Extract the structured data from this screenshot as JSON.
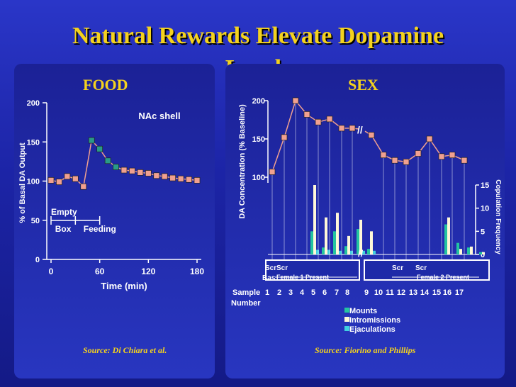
{
  "slide": {
    "title": "Natural Rewards Elevate Dopamine Levels",
    "title_line1": "Natural Rewards Elevate Dopamine",
    "title_line2": "Levels",
    "colors": {
      "title": "#f4d21e",
      "text": "#ffffff",
      "marker_pink": "#f0a090",
      "marker_teal": "#2a9a88",
      "series_line": "#f0a090",
      "mounts": "#24c4a0",
      "intromissions": "#fff8d8",
      "ejaculations": "#40d0e0"
    }
  },
  "chart_data": [
    {
      "type": "line",
      "subtitle": "FOOD",
      "annotation": "NAc shell",
      "xlabel": "Time (min)",
      "ylabel": "% of Basal DA Output",
      "xticks": [
        "0",
        "60",
        "120",
        "180"
      ],
      "yticks": [
        "0",
        "50",
        "100",
        "150",
        "200"
      ],
      "xlim": [
        -10,
        190
      ],
      "ylim": [
        0,
        200
      ],
      "phase_labels": [
        "Empty",
        "Box",
        "Feeding"
      ],
      "phase_ranges": [
        [
          0,
          30
        ],
        [
          30,
          60
        ]
      ],
      "x": [
        0,
        10,
        20,
        30,
        40,
        50,
        60,
        70,
        80,
        90,
        100,
        110,
        120,
        130,
        140,
        150,
        160,
        170,
        180
      ],
      "y": [
        101,
        99,
        106,
        103,
        93,
        152,
        141,
        126,
        118,
        114,
        113,
        111,
        110,
        107,
        106,
        104,
        103,
        102,
        101
      ],
      "teal_points": [
        50,
        60,
        70,
        80
      ],
      "source": "Source: Di Chiara et al."
    },
    {
      "type": "line+bar",
      "subtitle": "SEX",
      "ylabel": "DA Concentration (% Baseline)",
      "y2label": "Copulation Frequency",
      "yticks": [
        "100",
        "150",
        "200"
      ],
      "y2ticks": [
        "0",
        "5",
        "10",
        "15"
      ],
      "ylim": [
        88,
        203
      ],
      "y2lim": [
        0,
        15
      ],
      "xlabel": "Sample Number",
      "xlabel_line1": "Sample",
      "xlabel_line2": "Number",
      "xticks": [
        "1",
        "2",
        "3",
        "4",
        "5",
        "6",
        "7",
        "8",
        "9",
        "10",
        "11",
        "12",
        "13",
        "14",
        "15",
        "16",
        "17"
      ],
      "da_values": [
        107,
        152,
        200,
        182,
        172,
        176,
        164,
        164,
        155,
        129,
        122,
        120,
        131,
        150,
        127,
        129,
        122
      ],
      "series": [
        {
          "name": "Mounts",
          "values": [
            0,
            0,
            5,
            1.5,
            5,
            1.8,
            5.5,
            1.2,
            0,
            0,
            0,
            0,
            0,
            6.5,
            2.5,
            1.5,
            0.5
          ]
        },
        {
          "name": "Intromissions",
          "values": [
            0,
            0,
            15,
            8,
            9,
            4,
            7.5,
            5,
            0,
            0,
            0,
            0,
            0,
            8,
            1.2,
            1.7,
            0.5
          ]
        },
        {
          "name": "Ejaculations",
          "values": [
            0,
            0,
            1,
            1,
            0.8,
            0.8,
            0.8,
            0.8,
            0,
            0,
            0,
            0,
            0,
            0,
            0,
            0,
            0
          ]
        }
      ],
      "phase_labels": [
        "Scr",
        "Scr",
        "Bas",
        "Female 1 Present",
        "Scr",
        "Scr",
        "Female 2 Present"
      ],
      "source": "Source: Fiorino and Phillips"
    }
  ]
}
